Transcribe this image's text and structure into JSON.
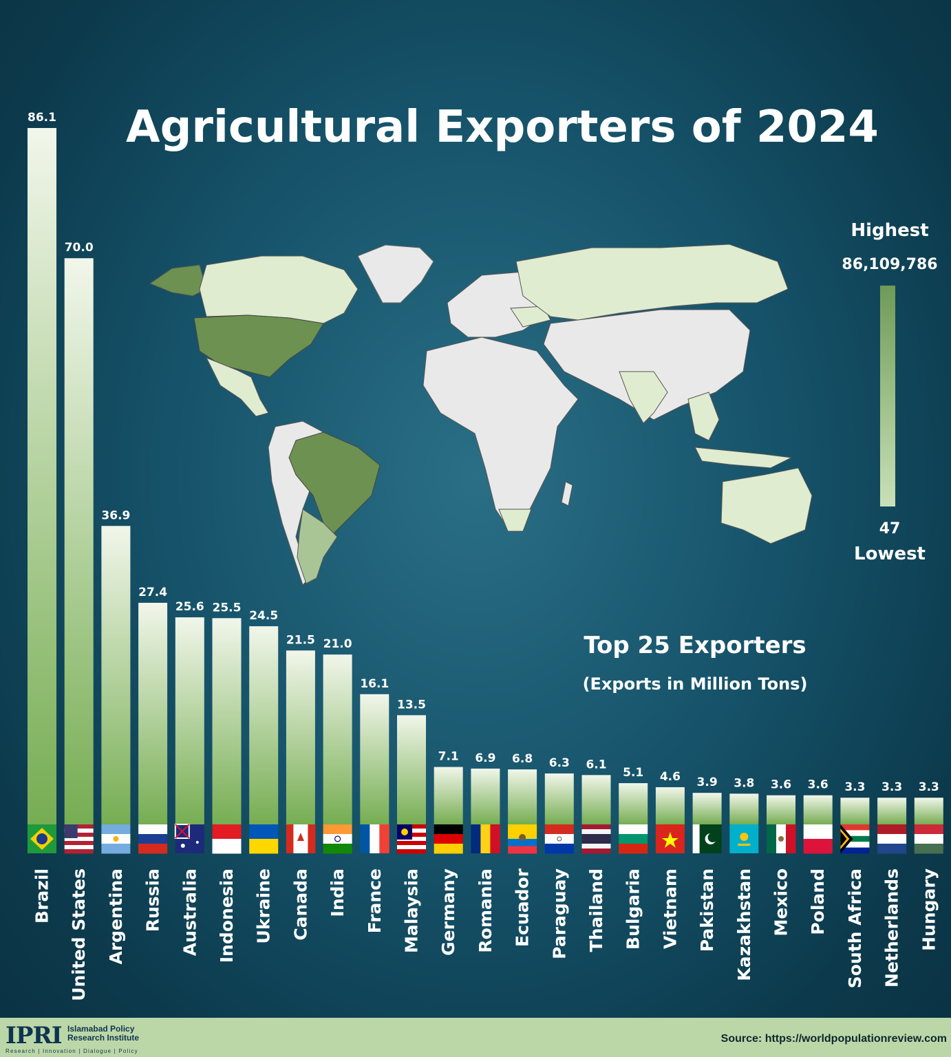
{
  "header": {
    "title": "Agricultural Exporters of 2024"
  },
  "annotation": {
    "main": "Top 25 Exporters",
    "unit": "(Exports in Million Tons)"
  },
  "legend": {
    "high_label": "Highest",
    "high_value": "86,109,786",
    "low_value": "47",
    "low_label": "Lowest"
  },
  "footer": {
    "logo": "IPRI",
    "org_line1": "Islamabad Policy",
    "org_line2": "Research Institute",
    "tagline": "Research | Innovation | Dialogue | Policy",
    "source": "Source: https://worldpopulationreview.com"
  },
  "colors": {
    "bar_top": "#f1f6ea",
    "bar_bottom": "#76ad52",
    "map_highlight": "#6d9150",
    "map_mid": "#a9c596",
    "map_light": "#dfeccf",
    "map_land": "#e9e9e9"
  },
  "chart_data": {
    "type": "bar",
    "categories": [
      "Brazil",
      "United States",
      "Argentina",
      "Russia",
      "Australia",
      "Indonesia",
      "Ukraine",
      "Canada",
      "India",
      "France",
      "Malaysia",
      "Germany",
      "Romania",
      "Ecuador",
      "Paraguay",
      "Thailand",
      "Bulgaria",
      "Vietnam",
      "Pakistan",
      "Kazakhstan",
      "Mexico",
      "Poland",
      "South Africa",
      "Netherlands",
      "Hungary"
    ],
    "values": [
      86.1,
      70.0,
      36.9,
      27.4,
      25.6,
      25.5,
      24.5,
      21.5,
      21.0,
      16.1,
      13.5,
      7.1,
      6.9,
      6.8,
      6.3,
      6.1,
      5.1,
      4.6,
      3.9,
      3.8,
      3.6,
      3.6,
      3.3,
      3.3,
      3.3
    ],
    "value_labels": [
      "86.1",
      "70.0",
      "36.9",
      "27.4",
      "25.6",
      "25.5",
      "24.5",
      "21.5",
      "21.0",
      "16.1",
      "13.5",
      "7.1",
      "6.9",
      "6.8",
      "6.3",
      "6.1",
      "5.1",
      "4.6",
      "3.9",
      "3.8",
      "3.6",
      "3.6",
      "3.3",
      "3.3",
      "3.3"
    ],
    "flag_icons": [
      "brazil-flag-icon",
      "united-states-flag-icon",
      "argentina-flag-icon",
      "russia-flag-icon",
      "australia-flag-icon",
      "indonesia-flag-icon",
      "ukraine-flag-icon",
      "canada-flag-icon",
      "india-flag-icon",
      "france-flag-icon",
      "malaysia-flag-icon",
      "germany-flag-icon",
      "romania-flag-icon",
      "ecuador-flag-icon",
      "paraguay-flag-icon",
      "thailand-flag-icon",
      "bulgaria-flag-icon",
      "vietnam-flag-icon",
      "pakistan-flag-icon",
      "kazakhstan-flag-icon",
      "mexico-flag-icon",
      "poland-flag-icon",
      "south-africa-flag-icon",
      "netherlands-flag-icon",
      "hungary-flag-icon"
    ],
    "legend_placement": "right",
    "grid": false
  }
}
